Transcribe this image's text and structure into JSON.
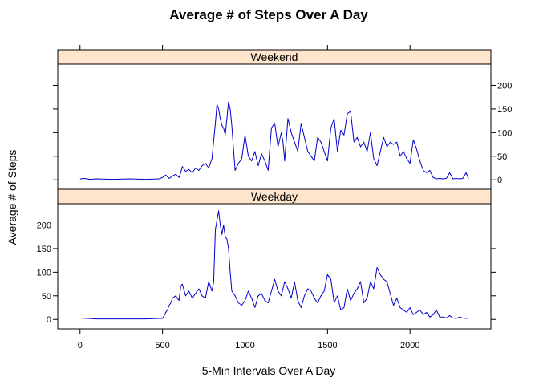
{
  "chart_data": {
    "type": "line",
    "title": "Average # of Steps Over A Day",
    "xlabel": "5-Min Intervals Over A Day",
    "ylabel": "Average # of Steps",
    "xlim": [
      -135,
      2490
    ],
    "ylim": [
      -20,
      245
    ],
    "x_ticks": [
      0,
      500,
      1000,
      1500,
      2000
    ],
    "y_ticks": [
      0,
      50,
      100,
      150,
      200
    ],
    "grid": false,
    "line_color": "#0000cd",
    "strip_color": "#ffe5cc",
    "panels": [
      {
        "name": "Weekend",
        "x": [
          0,
          30,
          60,
          100,
          200,
          300,
          400,
          480,
          500,
          520,
          540,
          560,
          580,
          600,
          610,
          620,
          640,
          660,
          680,
          700,
          720,
          740,
          760,
          780,
          800,
          820,
          830,
          840,
          850,
          860,
          870,
          880,
          890,
          900,
          910,
          920,
          940,
          960,
          980,
          1000,
          1020,
          1040,
          1060,
          1080,
          1100,
          1120,
          1140,
          1160,
          1180,
          1200,
          1220,
          1230,
          1240,
          1260,
          1280,
          1300,
          1320,
          1340,
          1360,
          1380,
          1400,
          1420,
          1440,
          1460,
          1480,
          1500,
          1520,
          1540,
          1560,
          1580,
          1600,
          1620,
          1640,
          1660,
          1680,
          1700,
          1720,
          1740,
          1760,
          1780,
          1800,
          1820,
          1840,
          1860,
          1880,
          1900,
          1920,
          1940,
          1960,
          1980,
          2000,
          2020,
          2040,
          2060,
          2080,
          2100,
          2120,
          2140,
          2160,
          2180,
          2200,
          2220,
          2240,
          2260,
          2280,
          2300,
          2320,
          2340,
          2355
        ],
        "y": [
          2,
          3,
          1,
          2,
          1,
          2,
          1,
          2,
          5,
          10,
          3,
          8,
          12,
          5,
          15,
          28,
          18,
          22,
          15,
          25,
          20,
          30,
          35,
          25,
          45,
          120,
          160,
          150,
          130,
          115,
          110,
          95,
          130,
          165,
          150,
          115,
          20,
          35,
          45,
          95,
          50,
          40,
          60,
          30,
          55,
          40,
          20,
          110,
          120,
          70,
          100,
          80,
          40,
          130,
          100,
          80,
          60,
          120,
          90,
          60,
          50,
          40,
          90,
          80,
          60,
          40,
          110,
          130,
          60,
          105,
          95,
          140,
          145,
          80,
          90,
          70,
          80,
          60,
          100,
          45,
          30,
          60,
          90,
          70,
          80,
          75,
          80,
          50,
          60,
          45,
          35,
          85,
          65,
          40,
          20,
          15,
          20,
          5,
          2,
          3,
          2,
          3,
          15,
          2,
          3,
          2,
          3,
          15,
          2
        ]
      },
      {
        "name": "Weekday",
        "x": [
          0,
          50,
          100,
          200,
          300,
          400,
          480,
          500,
          510,
          520,
          530,
          540,
          550,
          560,
          580,
          600,
          610,
          620,
          640,
          660,
          680,
          700,
          720,
          740,
          760,
          780,
          800,
          810,
          820,
          830,
          840,
          850,
          860,
          870,
          880,
          890,
          900,
          910,
          920,
          940,
          960,
          980,
          1000,
          1020,
          1040,
          1060,
          1080,
          1100,
          1120,
          1140,
          1160,
          1180,
          1200,
          1220,
          1240,
          1260,
          1280,
          1300,
          1320,
          1340,
          1360,
          1380,
          1400,
          1420,
          1440,
          1460,
          1480,
          1500,
          1520,
          1540,
          1560,
          1580,
          1600,
          1620,
          1640,
          1660,
          1680,
          1700,
          1720,
          1740,
          1760,
          1780,
          1800,
          1820,
          1840,
          1860,
          1880,
          1900,
          1920,
          1940,
          1960,
          1980,
          2000,
          2020,
          2040,
          2060,
          2080,
          2100,
          2120,
          2140,
          2160,
          2180,
          2200,
          2220,
          2240,
          2260,
          2280,
          2300,
          2320,
          2340,
          2355
        ],
        "y": [
          3,
          2,
          1,
          1,
          1,
          1,
          2,
          2,
          8,
          15,
          20,
          30,
          35,
          45,
          50,
          40,
          70,
          75,
          50,
          60,
          45,
          55,
          65,
          50,
          45,
          80,
          60,
          80,
          190,
          210,
          230,
          200,
          180,
          200,
          175,
          170,
          150,
          100,
          60,
          50,
          35,
          30,
          40,
          60,
          45,
          25,
          50,
          55,
          40,
          35,
          60,
          85,
          60,
          50,
          80,
          65,
          45,
          80,
          40,
          25,
          50,
          65,
          60,
          45,
          35,
          50,
          60,
          95,
          85,
          35,
          50,
          20,
          25,
          65,
          40,
          55,
          65,
          80,
          35,
          45,
          80,
          65,
          110,
          95,
          85,
          80,
          55,
          30,
          45,
          25,
          20,
          15,
          25,
          10,
          15,
          20,
          10,
          15,
          5,
          10,
          20,
          5,
          5,
          3,
          8,
          3,
          2,
          5,
          3,
          2,
          4
        ]
      }
    ]
  }
}
